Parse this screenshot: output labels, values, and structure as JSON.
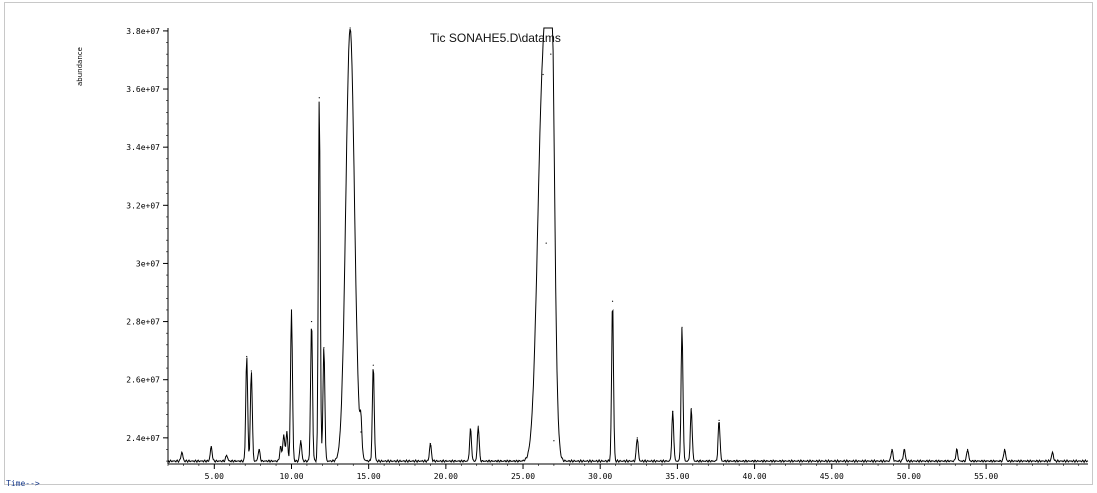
{
  "chart_data": {
    "type": "line",
    "title": "Tic SONAHE5.D\\datams",
    "ylabel": "abundance",
    "xlabel": "Time-->",
    "xlim": [
      2.0,
      61.6
    ],
    "ylim": [
      23100000,
      38100000
    ],
    "y_tick_labels": [
      "2.4e+07",
      "2.6e+07",
      "2.8e+07",
      "3e+07",
      "3.2e+07",
      "3.4e+07",
      "3.6e+07",
      "3.8e+07"
    ],
    "y_ticks": [
      24000000,
      26000000,
      28000000,
      30000000,
      32000000,
      34000000,
      36000000,
      38000000
    ],
    "x_tick_labels": [
      "5.00",
      "10.00",
      "15.00",
      "20.00",
      "25.00",
      "30.00",
      "35.00",
      "40.00",
      "45.00",
      "50.00",
      "55.00"
    ],
    "x_ticks": [
      5,
      10,
      15,
      20,
      25,
      30,
      35,
      40,
      45,
      50,
      55
    ],
    "series": [
      {
        "color": "#000000",
        "baseline": 23200000,
        "peaks": [
          {
            "x": 2.9,
            "y": 23500000
          },
          {
            "x": 4.8,
            "y": 23700000
          },
          {
            "x": 5.8,
            "y": 23400000
          },
          {
            "x": 7.1,
            "y": 26800000
          },
          {
            "x": 7.4,
            "y": 26300000
          },
          {
            "x": 7.9,
            "y": 23600000
          },
          {
            "x": 9.3,
            "y": 23700000
          },
          {
            "x": 9.5,
            "y": 24100000
          },
          {
            "x": 9.7,
            "y": 24200000
          },
          {
            "x": 10.0,
            "y": 28400000
          },
          {
            "x": 10.6,
            "y": 23900000
          },
          {
            "x": 11.3,
            "y": 28000000
          },
          {
            "x": 11.8,
            "y": 35700000
          },
          {
            "x": 12.1,
            "y": 27100000
          },
          {
            "x": 13.8,
            "y": 38100000
          },
          {
            "x": 14.5,
            "y": 24200000
          },
          {
            "x": 15.3,
            "y": 26500000
          },
          {
            "x": 19.0,
            "y": 23800000
          },
          {
            "x": 21.6,
            "y": 24300000
          },
          {
            "x": 22.1,
            "y": 24400000
          },
          {
            "x": 26.3,
            "y": 36500000
          },
          {
            "x": 26.5,
            "y": 30700000
          },
          {
            "x": 26.8,
            "y": 37200000
          },
          {
            "x": 27.0,
            "y": 23900000
          },
          {
            "x": 30.8,
            "y": 28700000
          },
          {
            "x": 32.4,
            "y": 24000000
          },
          {
            "x": 34.7,
            "y": 24900000
          },
          {
            "x": 35.3,
            "y": 27800000
          },
          {
            "x": 35.9,
            "y": 25000000
          },
          {
            "x": 37.7,
            "y": 24600000
          },
          {
            "x": 48.9,
            "y": 23600000
          },
          {
            "x": 49.7,
            "y": 23600000
          },
          {
            "x": 53.1,
            "y": 23600000
          },
          {
            "x": 53.8,
            "y": 23600000
          },
          {
            "x": 56.2,
            "y": 23600000
          },
          {
            "x": 59.3,
            "y": 23500000
          }
        ]
      }
    ],
    "grid": false,
    "legend": "none"
  }
}
